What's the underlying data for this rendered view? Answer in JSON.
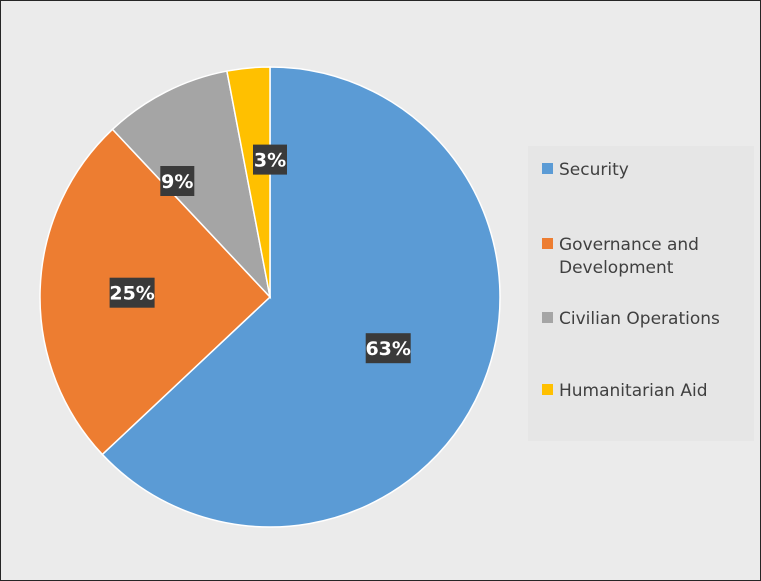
{
  "chart_data": {
    "type": "pie",
    "categories": [
      "Security",
      "Governance and Development",
      "Civilian Operations",
      "Humanitarian Aid"
    ],
    "values": [
      63,
      25,
      9,
      3
    ],
    "data_labels": [
      "63%",
      "25%",
      "9%",
      "3%"
    ],
    "colors": [
      "#5b9bd5",
      "#ed7d31",
      "#a5a5a5",
      "#ffc000"
    ],
    "title": "",
    "legend_position": "right"
  }
}
